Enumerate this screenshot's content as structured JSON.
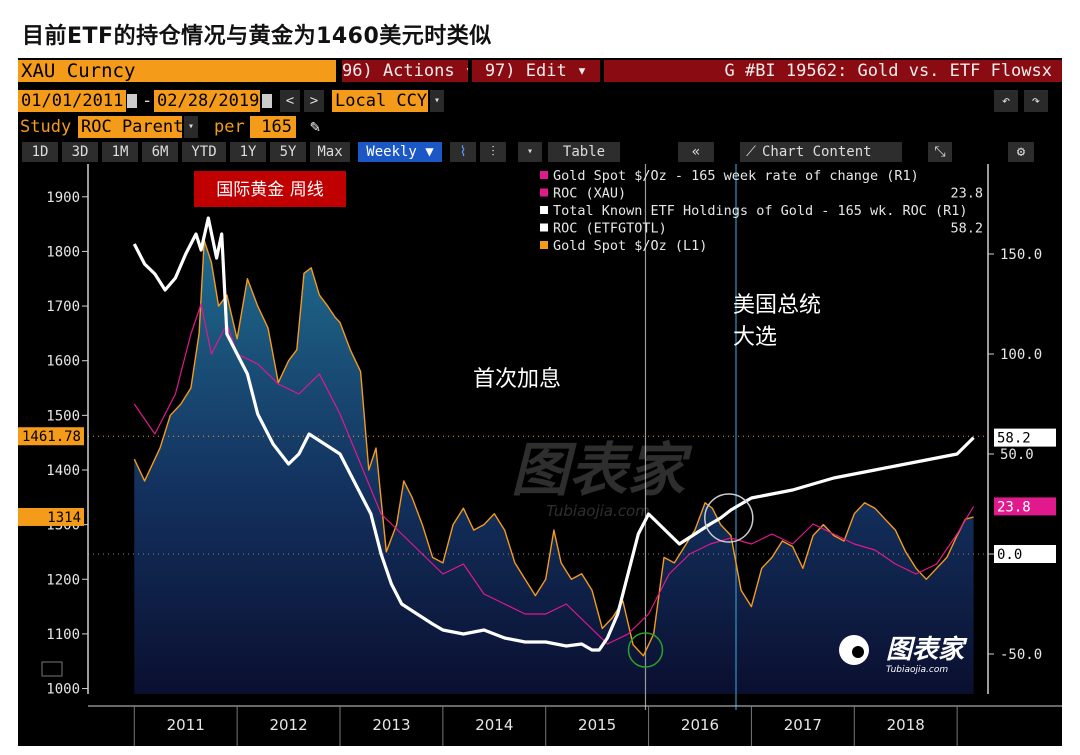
{
  "page_title": "目前ETF的持仓情况与黄金为1460美元时类似",
  "header": {
    "ticker": "XAU Curncy",
    "actions_label": "96) Actions ▾",
    "edit_label": "97) Edit ▾",
    "chart_id": "G #BI 19562: Gold vs. ETF Flowsx"
  },
  "toolbar": {
    "start_date": "01/01/2011",
    "end_date": "02/28/2019",
    "currency": "Local CCY",
    "study_label": "Study",
    "study_value": "ROC Parent",
    "per_label": "per",
    "per_value": "165",
    "periods": [
      "1D",
      "3D",
      "1M",
      "6M",
      "YTD",
      "1Y",
      "5Y",
      "Max"
    ],
    "weekly_label": "Weekly ▼",
    "table_label": "Table",
    "chart_content_label": "Chart Content"
  },
  "legend": [
    {
      "label": "Gold Spot $/Oz - 165 week rate of change (R1)",
      "value": "",
      "color": "#e0198c"
    },
    {
      "label": "ROC (XAU)",
      "value": "23.8",
      "color": "#e0198c"
    },
    {
      "label": "Total Known ETF Holdings of Gold - 165 wk. ROC (R1)",
      "value": "",
      "color": "#ffffff"
    },
    {
      "label": "ROC (ETFGTOTL)",
      "value": "58.2",
      "color": "#ffffff"
    },
    {
      "label": "Gold Spot $/Oz (L1)",
      "value": "",
      "color": "#f49b19"
    }
  ],
  "annotations": {
    "red_tag": "国际黄金 周线",
    "first_hike": "首次加息",
    "election_line1": "美国总统",
    "election_line2": "大选",
    "watermark": "图表家",
    "watermark_sub": "Tubiaojia.com",
    "logo_text": "图表家",
    "logo_sub": "Tubiaojia.com"
  },
  "chart_data": {
    "type": "line",
    "x_ticks": [
      "2011",
      "2012",
      "2013",
      "2014",
      "2015",
      "2016",
      "2017",
      "2018"
    ],
    "left_axis": {
      "ticks": [
        1000,
        1100,
        1200,
        1300,
        1400,
        1500,
        1600,
        1700,
        1800,
        1900
      ],
      "range": [
        990,
        1960
      ]
    },
    "right_axis": {
      "ticks": [
        "-50.0",
        "0.0",
        "50.0",
        "100.0",
        "150.0"
      ],
      "range": [
        -70,
        195
      ]
    },
    "markers": {
      "left_price": "1461.78",
      "left_price_value": 1461.78,
      "left_314": "1314",
      "left_314_value": 1314,
      "right_etf": "58.2",
      "right_etf_value": 58.2,
      "right_xau": "23.8",
      "right_xau_value": 23.8,
      "right_zero": "0.0",
      "right_zero_value": 0
    },
    "series": [
      {
        "name": "Gold Spot $/Oz (L1)",
        "axis": "left",
        "color": "#f49b19",
        "t": [
          2011.0,
          2011.1,
          2011.25,
          2011.35,
          2011.45,
          2011.55,
          2011.63,
          2011.68,
          2011.75,
          2011.82,
          2011.9,
          2012.0,
          2012.1,
          2012.2,
          2012.3,
          2012.4,
          2012.5,
          2012.58,
          2012.65,
          2012.72,
          2012.8,
          2012.88,
          2012.95,
          2013.0,
          2013.1,
          2013.2,
          2013.28,
          2013.35,
          2013.45,
          2013.55,
          2013.62,
          2013.7,
          2013.8,
          2013.9,
          2014.0,
          2014.1,
          2014.2,
          2014.3,
          2014.4,
          2014.5,
          2014.6,
          2014.7,
          2014.8,
          2014.9,
          2015.0,
          2015.08,
          2015.15,
          2015.25,
          2015.35,
          2015.45,
          2015.55,
          2015.65,
          2015.75,
          2015.85,
          2015.95,
          2016.05,
          2016.15,
          2016.25,
          2016.35,
          2016.45,
          2016.55,
          2016.62,
          2016.7,
          2016.8,
          2016.9,
          2017.0,
          2017.1,
          2017.2,
          2017.3,
          2017.4,
          2017.5,
          2017.6,
          2017.7,
          2017.8,
          2017.9,
          2018.0,
          2018.1,
          2018.2,
          2018.3,
          2018.4,
          2018.5,
          2018.6,
          2018.7,
          2018.8,
          2018.9,
          2019.0,
          2019.08,
          2019.16
        ],
        "values": [
          1420,
          1380,
          1440,
          1500,
          1520,
          1550,
          1650,
          1820,
          1780,
          1700,
          1720,
          1640,
          1750,
          1700,
          1660,
          1560,
          1600,
          1620,
          1760,
          1770,
          1720,
          1700,
          1680,
          1670,
          1620,
          1580,
          1400,
          1440,
          1250,
          1300,
          1380,
          1350,
          1300,
          1240,
          1230,
          1300,
          1330,
          1290,
          1300,
          1320,
          1290,
          1230,
          1200,
          1170,
          1200,
          1290,
          1230,
          1200,
          1210,
          1180,
          1110,
          1130,
          1160,
          1080,
          1060,
          1100,
          1240,
          1230,
          1260,
          1290,
          1340,
          1330,
          1300,
          1280,
          1180,
          1150,
          1220,
          1240,
          1270,
          1260,
          1220,
          1280,
          1300,
          1280,
          1270,
          1320,
          1340,
          1330,
          1310,
          1290,
          1250,
          1220,
          1200,
          1220,
          1240,
          1280,
          1310,
          1314
        ]
      },
      {
        "name": "ROC (XAU)",
        "axis": "right",
        "color": "#e0198c",
        "t": [
          2011.0,
          2011.2,
          2011.4,
          2011.55,
          2011.65,
          2011.75,
          2011.9,
          2012.0,
          2012.2,
          2012.4,
          2012.6,
          2012.8,
          2013.0,
          2013.2,
          2013.4,
          2013.6,
          2013.8,
          2014.0,
          2014.2,
          2014.4,
          2014.6,
          2014.8,
          2015.0,
          2015.2,
          2015.4,
          2015.6,
          2015.8,
          2016.0,
          2016.2,
          2016.4,
          2016.6,
          2016.8,
          2017.0,
          2017.2,
          2017.4,
          2017.6,
          2017.8,
          2018.0,
          2018.2,
          2018.4,
          2018.6,
          2018.8,
          2019.0,
          2019.16
        ],
        "values": [
          75,
          60,
          80,
          110,
          125,
          100,
          115,
          100,
          95,
          85,
          80,
          90,
          70,
          45,
          20,
          10,
          0,
          -10,
          -5,
          -20,
          -25,
          -30,
          -30,
          -25,
          -35,
          -45,
          -40,
          -30,
          -10,
          0,
          5,
          8,
          5,
          10,
          5,
          15,
          10,
          5,
          2,
          -5,
          -10,
          -5,
          10,
          23.8
        ]
      },
      {
        "name": "ROC (ETFGTOTL)",
        "axis": "right",
        "color": "#ffffff",
        "t": [
          2011.0,
          2011.1,
          2011.2,
          2011.3,
          2011.4,
          2011.5,
          2011.6,
          2011.65,
          2011.72,
          2011.8,
          2011.85,
          2011.9,
          2012.0,
          2012.1,
          2012.2,
          2012.35,
          2012.5,
          2012.6,
          2012.7,
          2012.85,
          2013.0,
          2013.1,
          2013.2,
          2013.3,
          2013.4,
          2013.5,
          2013.6,
          2013.75,
          2013.9,
          2014.0,
          2014.2,
          2014.4,
          2014.6,
          2014.8,
          2015.0,
          2015.2,
          2015.35,
          2015.45,
          2015.52,
          2015.6,
          2015.7,
          2015.8,
          2015.9,
          2016.0,
          2016.1,
          2016.2,
          2016.3,
          2016.45,
          2016.6,
          2016.7,
          2016.8,
          2016.9,
          2017.0,
          2017.2,
          2017.4,
          2017.6,
          2017.8,
          2018.0,
          2018.2,
          2018.4,
          2018.6,
          2018.8,
          2019.0,
          2019.16
        ],
        "values": [
          155,
          145,
          140,
          132,
          138,
          150,
          160,
          152,
          168,
          148,
          160,
          110,
          100,
          90,
          70,
          55,
          45,
          50,
          60,
          55,
          50,
          40,
          30,
          20,
          0,
          -15,
          -25,
          -30,
          -35,
          -38,
          -40,
          -38,
          -42,
          -44,
          -44,
          -46,
          -45,
          -48,
          -48,
          -42,
          -30,
          -10,
          10,
          20,
          15,
          10,
          5,
          10,
          15,
          18,
          22,
          25,
          28,
          30,
          32,
          35,
          38,
          40,
          42,
          44,
          46,
          48,
          50,
          58.2
        ]
      }
    ]
  }
}
